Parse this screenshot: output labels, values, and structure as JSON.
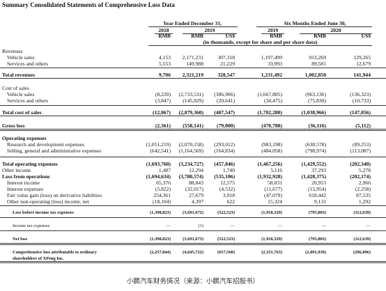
{
  "header": {
    "title": "Summary Consolidated Statements of Comprehensive Loss Data",
    "periods": [
      "Year Ended December 31,",
      "Six Months Ended June 30,"
    ],
    "years": [
      "2018",
      "2019",
      "2019",
      "2020"
    ],
    "currencies": [
      "RMB",
      "RMB",
      "US$",
      "RMB",
      "RMB",
      "US$"
    ],
    "note": "(in thousands, except for share and per share data)"
  },
  "table": {
    "rows": [
      {
        "label": "Revenues"
      },
      {
        "label": "Vehicle sales",
        "cells": [
          "4,153",
          "2,171,231",
          "307,318",
          "1,197,499",
          "913,269",
          "129,265"
        ]
      },
      {
        "label": "Services and others",
        "cells": [
          "5,553",
          "149,988",
          "21,229",
          "33,993",
          "89,581",
          "12,679"
        ]
      },
      {
        "label": "Total revenues",
        "cells": [
          "9,706",
          "2,321,219",
          "328,547",
          "1,231,492",
          "1,002,850",
          "141,944"
        ]
      },
      {
        "label": "Cost of sales"
      },
      {
        "label": "Vehicle sales",
        "cells": [
          "(8,220)",
          "(2,733,531)",
          "(386,906)",
          "(1,667,805)",
          "(963,136)",
          "(136,323)"
        ]
      },
      {
        "label": "Services and others",
        "cells": [
          "(3,847)",
          "(145,829)",
          "(20,641)",
          "(34,475)",
          "(75,830)",
          "(10,733)"
        ]
      },
      {
        "label": "Total cost of sales",
        "cells": [
          "(12,067)",
          "(2,879,360)",
          "(407,547)",
          "(1,702,280)",
          "(1,038,966)",
          "(147,056)"
        ]
      },
      {
        "label": "Gross loss",
        "cells": [
          "(2,361)",
          "(558,141)",
          "(79,000)",
          "(470,788)",
          "(36,116)",
          "(5,112)"
        ]
      },
      {
        "label": "Operating expenses"
      },
      {
        "label": "Research and development expenses",
        "cells": [
          "(1,051,219)",
          "(2,070,158)",
          "(293,012)",
          "(983,198)",
          "(630,578)",
          "(89,253)"
        ]
      },
      {
        "label": "Selling, general and administrative expenses",
        "cells": [
          "(642,541)",
          "(1,164,569)",
          "(164,834)",
          "(484,058)",
          "(798,974)",
          "(113,087)"
        ]
      },
      {
        "label": "Total operating expenses",
        "cells": [
          "(1,693,760)",
          "(3,234,727)",
          "(457,846)",
          "(1,467,256)",
          "(1,429,552)",
          "(202,340)"
        ]
      },
      {
        "label": "Other income",
        "cells": [
          "1,487",
          "12,294",
          "1,740",
          "5,116",
          "37,293",
          "5,278"
        ]
      },
      {
        "label": "Loss from operations",
        "cells": [
          "(1,694,634)",
          "(3,780,574)",
          "(535,106)",
          "(1,932,928)",
          "(1,428,375)",
          "(202,174)"
        ]
      },
      {
        "label": "Interest income",
        "cells": [
          "65,376",
          "88,843",
          "12,575",
          "58,031",
          "20,953",
          "2,966"
        ]
      },
      {
        "label": "Interest expenses",
        "cells": [
          "(5,822)",
          "(32,017)",
          "(4,532)",
          "(11,677)",
          "(15,954)",
          "(2,258)"
        ]
      },
      {
        "label": "Fair value gain (loss) on derivative liabilities",
        "cells": [
          "254,361",
          "27,679",
          "3,918",
          "(47,079)",
          "618,442",
          "87,535"
        ]
      },
      {
        "label": "Other non-operating (loss) income, net",
        "cells": [
          "(18,104)",
          "4,397",
          "622",
          "15,324",
          "9,131",
          "1,292"
        ]
      },
      {
        "label": "Loss before income tax expenses",
        "cells": [
          "(1,398,823)",
          "(3,691,672)",
          "(522,523)",
          "(1,918,329)",
          "(795,803)",
          "(112,639)"
        ]
      },
      {
        "label": "Income tax expenses",
        "cells": [
          "—",
          "(1)",
          "—",
          "—",
          "—",
          "—"
        ]
      },
      {
        "label": "Net loss",
        "cells": [
          "(1,398,823)",
          "(3,691,673)",
          "(522,523)",
          "(1,918,329)",
          "(795,803)",
          "(112,639)"
        ]
      },
      {
        "label": "Comprehensive loss attributable to ordinary shareholders of XPeng Inc.",
        "cells": [
          "(2,257,844)",
          "(4,645,722)",
          "(657,560)",
          "(2,331,763)",
          "(2,091,939)",
          "(296,096)"
        ]
      }
    ]
  },
  "caption": "小鹏汽车财务情况（来源：小鹏汽车招股书）"
}
